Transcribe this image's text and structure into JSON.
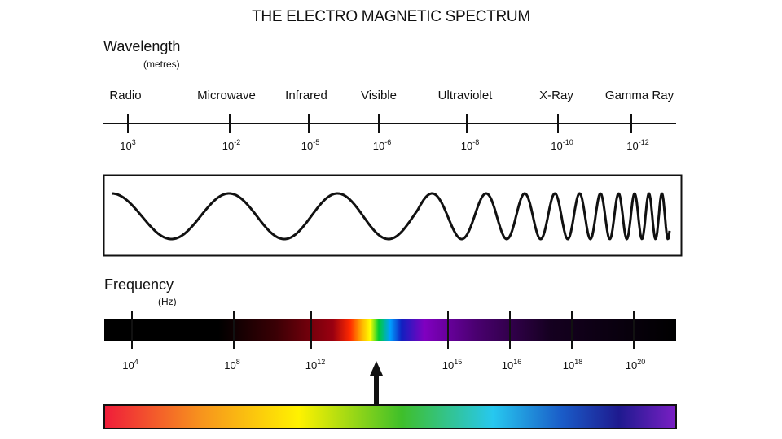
{
  "title": "THE ELECTRO MAGNETIC SPECTRUM",
  "wavelength": {
    "label": "Wavelength",
    "unit": "(metres)",
    "bands": [
      "Radio",
      "Microwave",
      "Infrared",
      "Visible",
      "Ultraviolet",
      "X-Ray",
      "Gamma Ray"
    ],
    "ticks": [
      {
        "base": "10",
        "exp": "3"
      },
      {
        "base": "10",
        "exp": "-2"
      },
      {
        "base": "10",
        "exp": "-5"
      },
      {
        "base": "10",
        "exp": "-6"
      },
      {
        "base": "10",
        "exp": "-8"
      },
      {
        "base": "10",
        "exp": "-10"
      },
      {
        "base": "10",
        "exp": "-12"
      }
    ]
  },
  "frequency": {
    "label": "Frequency",
    "unit": "(Hz)",
    "ticks": [
      {
        "base": "10",
        "exp": "4"
      },
      {
        "base": "10",
        "exp": "8"
      },
      {
        "base": "10",
        "exp": "12"
      },
      {
        "base": "10",
        "exp": "15"
      },
      {
        "base": "10",
        "exp": "16"
      },
      {
        "base": "10",
        "exp": "18"
      },
      {
        "base": "10",
        "exp": "20"
      }
    ]
  },
  "colors": {
    "line": "#111111",
    "visible_band": [
      "#ff2a00",
      "#ffb000",
      "#ffff00",
      "#00cc33",
      "#00a0ff",
      "#1020c0",
      "#8000c0"
    ],
    "rainbow": [
      "#ef1c3a",
      "#f7941d",
      "#fff200",
      "#6ccf2c",
      "#00b2a9",
      "#27aae1",
      "#2e3192",
      "#6b1fb1"
    ]
  }
}
